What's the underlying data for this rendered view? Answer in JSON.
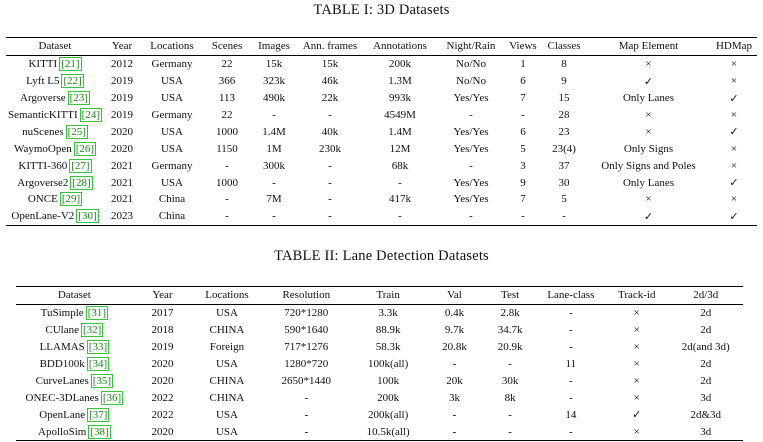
{
  "table1": {
    "caption": "TABLE I: 3D Datasets",
    "headers": [
      "Dataset",
      "Year",
      "Locations",
      "Scenes",
      "Images",
      "Ann. frames",
      "Annotations",
      "Night/Rain",
      "Views",
      "Classes",
      "Map Element",
      "HDMap"
    ],
    "rows": [
      {
        "name": "KITTI",
        "ref": "[21]",
        "cells": [
          "2012",
          "Germany",
          "22",
          "15k",
          "15k",
          "200k",
          "No/No",
          "1",
          "8",
          "×",
          "×"
        ]
      },
      {
        "name": "Lyft L5",
        "ref": "[22]",
        "cells": [
          "2019",
          "USA",
          "366",
          "323k",
          "46k",
          "1.3M",
          "No/No",
          "6",
          "9",
          "✓",
          "×"
        ]
      },
      {
        "name": "Argoverse",
        "ref": "[23]",
        "cells": [
          "2019",
          "USA",
          "113",
          "490k",
          "22k",
          "993k",
          "Yes/Yes",
          "7",
          "15",
          "Only Lanes",
          "✓"
        ]
      },
      {
        "name": "SemanticKITTI",
        "ref": "[24]",
        "cells": [
          "2019",
          "Germany",
          "22",
          "-",
          "-",
          "4549M",
          "-",
          "-",
          "28",
          "×",
          "×"
        ]
      },
      {
        "name": "nuScenes",
        "ref": "[25]",
        "cells": [
          "2020",
          "USA",
          "1000",
          "1.4M",
          "40k",
          "1.4M",
          "Yes/Yes",
          "6",
          "23",
          "×",
          "✓"
        ]
      },
      {
        "name": "WaymoOpen",
        "ref": "[26]",
        "cells": [
          "2020",
          "USA",
          "1150",
          "1M",
          "230k",
          "12M",
          "Yes/Yes",
          "5",
          "23(4)",
          "Only Signs",
          "×"
        ]
      },
      {
        "name": "KITTI-360",
        "ref": "[27]",
        "cells": [
          "2021",
          "Germany",
          "-",
          "300k",
          "-",
          "68k",
          "-",
          "3",
          "37",
          "Only Signs and Poles",
          "×"
        ]
      },
      {
        "name": "Argoverse2",
        "ref": "[28]",
        "cells": [
          "2021",
          "USA",
          "1000",
          "-",
          "-",
          "-",
          "Yes/Yes",
          "9",
          "30",
          "Only Lanes",
          "✓"
        ]
      },
      {
        "name": "ONCE",
        "ref": "[29]",
        "cells": [
          "2021",
          "China",
          "-",
          "7M",
          "-",
          "417k",
          "Yes/Yes",
          "7",
          "5",
          "×",
          "×"
        ]
      },
      {
        "name": "OpenLane-V2",
        "ref": "[30]",
        "cells": [
          "2023",
          "China",
          "-",
          "-",
          "-",
          "-",
          "-",
          "-",
          "-",
          "✓",
          "✓"
        ]
      }
    ]
  },
  "table2": {
    "caption": "TABLE II: Lane Detection Datasets",
    "headers": [
      "Dataset",
      "Year",
      "Locations",
      "Resolution",
      "Train",
      "Val",
      "Test",
      "Lane-class",
      "Track-id",
      "2d/3d"
    ],
    "rows": [
      {
        "name": "TuSimple",
        "ref": "[31]",
        "cells": [
          "2017",
          "USA",
          "720*1280",
          "3.3k",
          "0.4k",
          "2.8k",
          "-",
          "×",
          "2d"
        ]
      },
      {
        "name": "CUlane",
        "ref": "[32]",
        "cells": [
          "2018",
          "CHINA",
          "590*1640",
          "88.9k",
          "9.7k",
          "34.7k",
          "-",
          "×",
          "2d"
        ]
      },
      {
        "name": "LLAMAS",
        "ref": "[33]",
        "cells": [
          "2019",
          "Foreign",
          "717*1276",
          "58.3k",
          "20.8k",
          "20.9k",
          "-",
          "×",
          "2d(and 3d)"
        ]
      },
      {
        "name": "BDD100k",
        "ref": "[34]",
        "cells": [
          "2020",
          "USA",
          "1280*720",
          "100k(all)",
          "-",
          "-",
          "11",
          "×",
          "2d"
        ]
      },
      {
        "name": "CurveLanes",
        "ref": "[35]",
        "cells": [
          "2020",
          "CHINA",
          "2650*1440",
          "100k",
          "20k",
          "30k",
          "-",
          "×",
          "2d"
        ]
      },
      {
        "name": "ONEC-3DLanes",
        "ref": "[36]",
        "cells": [
          "2022",
          "CHINA",
          "-",
          "200k",
          "3k",
          "8k",
          "-",
          "×",
          "3d"
        ]
      },
      {
        "name": "OpenLane",
        "ref": "[37]",
        "cells": [
          "2022",
          "USA",
          "-",
          "200k(all)",
          "-",
          "-",
          "14",
          "✓",
          "2d&3d"
        ]
      },
      {
        "name": "ApolloSim",
        "ref": "[38]",
        "cells": [
          "2020",
          "USA",
          "-",
          "10.5k(all)",
          "-",
          "-",
          "-",
          "×",
          "3d"
        ]
      }
    ]
  }
}
